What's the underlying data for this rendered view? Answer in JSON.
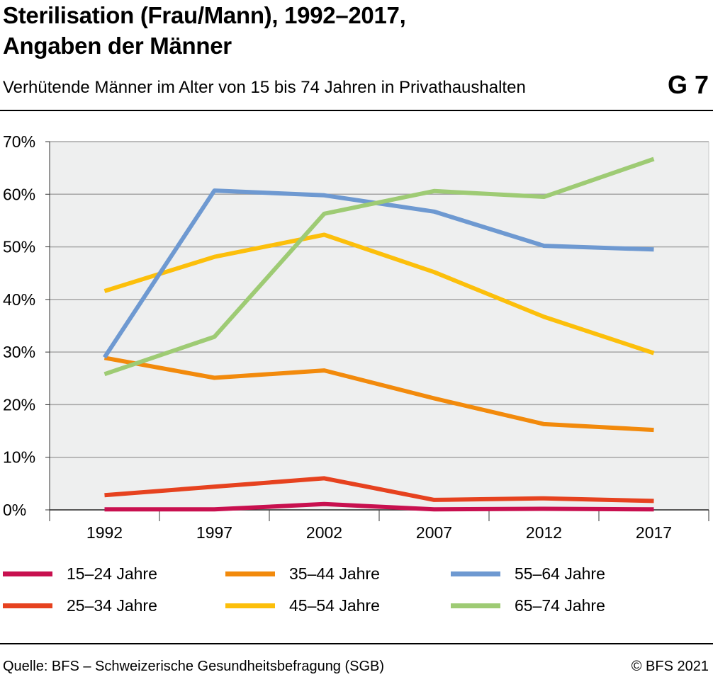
{
  "header": {
    "title_line1": "Sterilisation (Frau/Mann), 1992–2017,",
    "title_line2": "Angaben der Männer",
    "subtitle": "Verhütende Männer im Alter von 15 bis 74 Jahren in Privathaushalten",
    "code": "G 7"
  },
  "footer": {
    "source": "Quelle: BFS – Schweizerische Gesundheitsbefragung (SGB)",
    "copyright": "© BFS 2021"
  },
  "chart_data": {
    "type": "line",
    "title": "Sterilisation (Frau/Mann), 1992–2017, Angaben der Männer",
    "subtitle": "Verhütende Männer im Alter von 15 bis 74 Jahren in Privathaushalten",
    "categories": [
      "1992",
      "1997",
      "2002",
      "2007",
      "2012",
      "2017"
    ],
    "ylim": [
      0,
      70
    ],
    "yticks": [
      0,
      10,
      20,
      30,
      40,
      50,
      60,
      70
    ],
    "ytick_labels": [
      "0%",
      "10%",
      "20%",
      "30%",
      "40%",
      "50%",
      "60%",
      "70%"
    ],
    "grid": true,
    "legend_position": "bottom",
    "series": [
      {
        "name": "15–24 Jahre",
        "color": "#c8104f",
        "values": [
          0.1,
          0.1,
          1.1,
          0.1,
          0.2,
          0.1
        ]
      },
      {
        "name": "25–34 Jahre",
        "color": "#e6421f",
        "values": [
          2.8,
          4.4,
          6.0,
          1.9,
          2.2,
          1.7
        ]
      },
      {
        "name": "35–44 Jahre",
        "color": "#f28a0c",
        "values": [
          28.9,
          25.1,
          26.5,
          21.2,
          16.3,
          15.2
        ]
      },
      {
        "name": "45–54 Jahre",
        "color": "#fcbf0b",
        "values": [
          41.6,
          48.1,
          52.3,
          45.2,
          36.7,
          29.8
        ]
      },
      {
        "name": "55–64 Jahre",
        "color": "#6e99d1",
        "values": [
          29.0,
          60.7,
          59.8,
          56.7,
          50.2,
          49.5
        ]
      },
      {
        "name": "65–74 Jahre",
        "color": "#9ecb74",
        "values": [
          25.8,
          32.9,
          56.3,
          60.6,
          59.5,
          66.7
        ]
      }
    ]
  }
}
